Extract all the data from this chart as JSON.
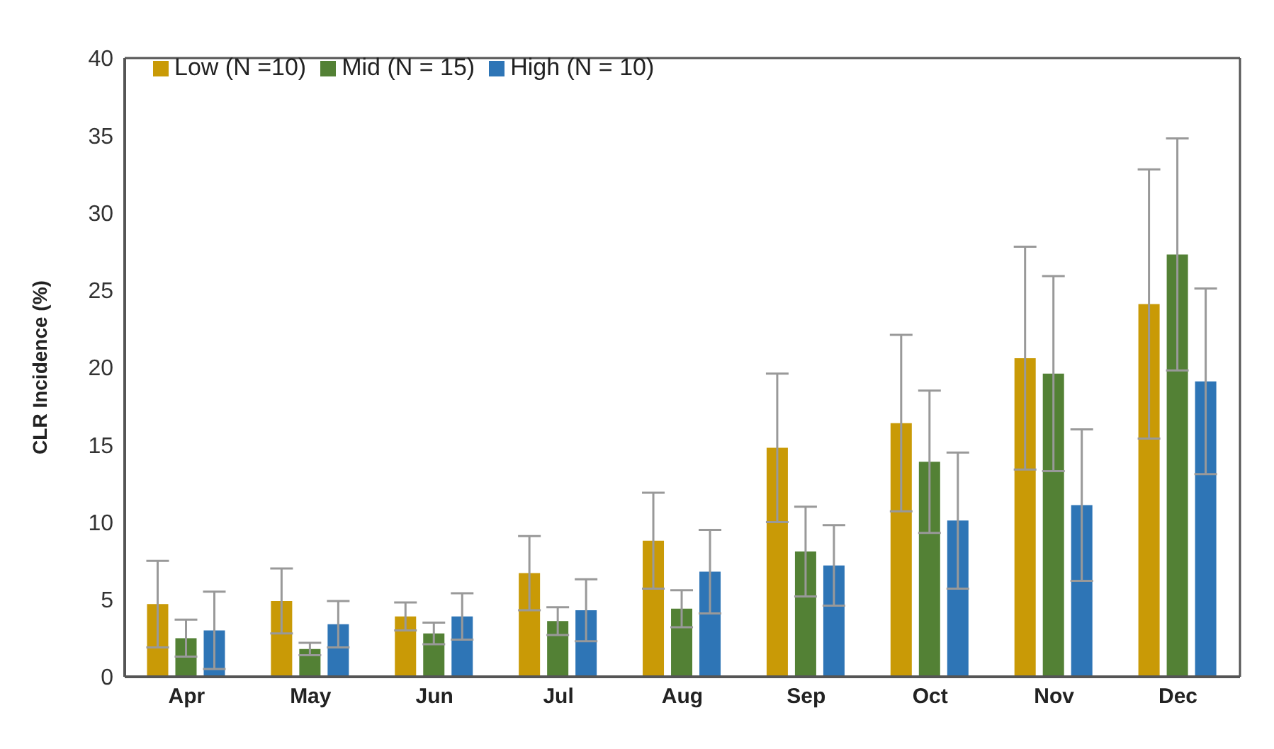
{
  "chart_data": {
    "type": "bar",
    "ylabel": "CLR Incidence (%)",
    "categories": [
      "Apr",
      "May",
      "Jun",
      "Jul",
      "Aug",
      "Sep",
      "Oct",
      "Nov",
      "Dec"
    ],
    "series": [
      {
        "name": "Low (N =10)",
        "color": "#c99a06",
        "values": [
          4.7,
          4.9,
          3.9,
          6.7,
          8.8,
          14.8,
          16.4,
          20.6,
          24.1
        ],
        "errors": [
          2.8,
          2.1,
          0.9,
          2.4,
          3.1,
          4.8,
          5.7,
          7.2,
          8.7
        ]
      },
      {
        "name": "Mid (N = 15)",
        "color": "#538135",
        "values": [
          2.5,
          1.8,
          2.8,
          3.6,
          4.4,
          8.1,
          13.9,
          19.6,
          27.3
        ],
        "errors": [
          1.2,
          0.4,
          0.7,
          0.9,
          1.2,
          2.9,
          4.6,
          6.3,
          7.5
        ]
      },
      {
        "name": "High (N = 10)",
        "color": "#2e75b6",
        "values": [
          3.0,
          3.4,
          3.9,
          4.3,
          6.8,
          7.2,
          10.1,
          11.1,
          19.1
        ],
        "errors": [
          2.5,
          1.5,
          1.5,
          2.0,
          2.7,
          2.6,
          4.4,
          4.9,
          6.0
        ]
      }
    ],
    "ylim": [
      0,
      40
    ],
    "yticks": [
      0,
      5,
      10,
      15,
      20,
      25,
      30,
      35,
      40
    ],
    "grid": false,
    "legend": "top left"
  }
}
